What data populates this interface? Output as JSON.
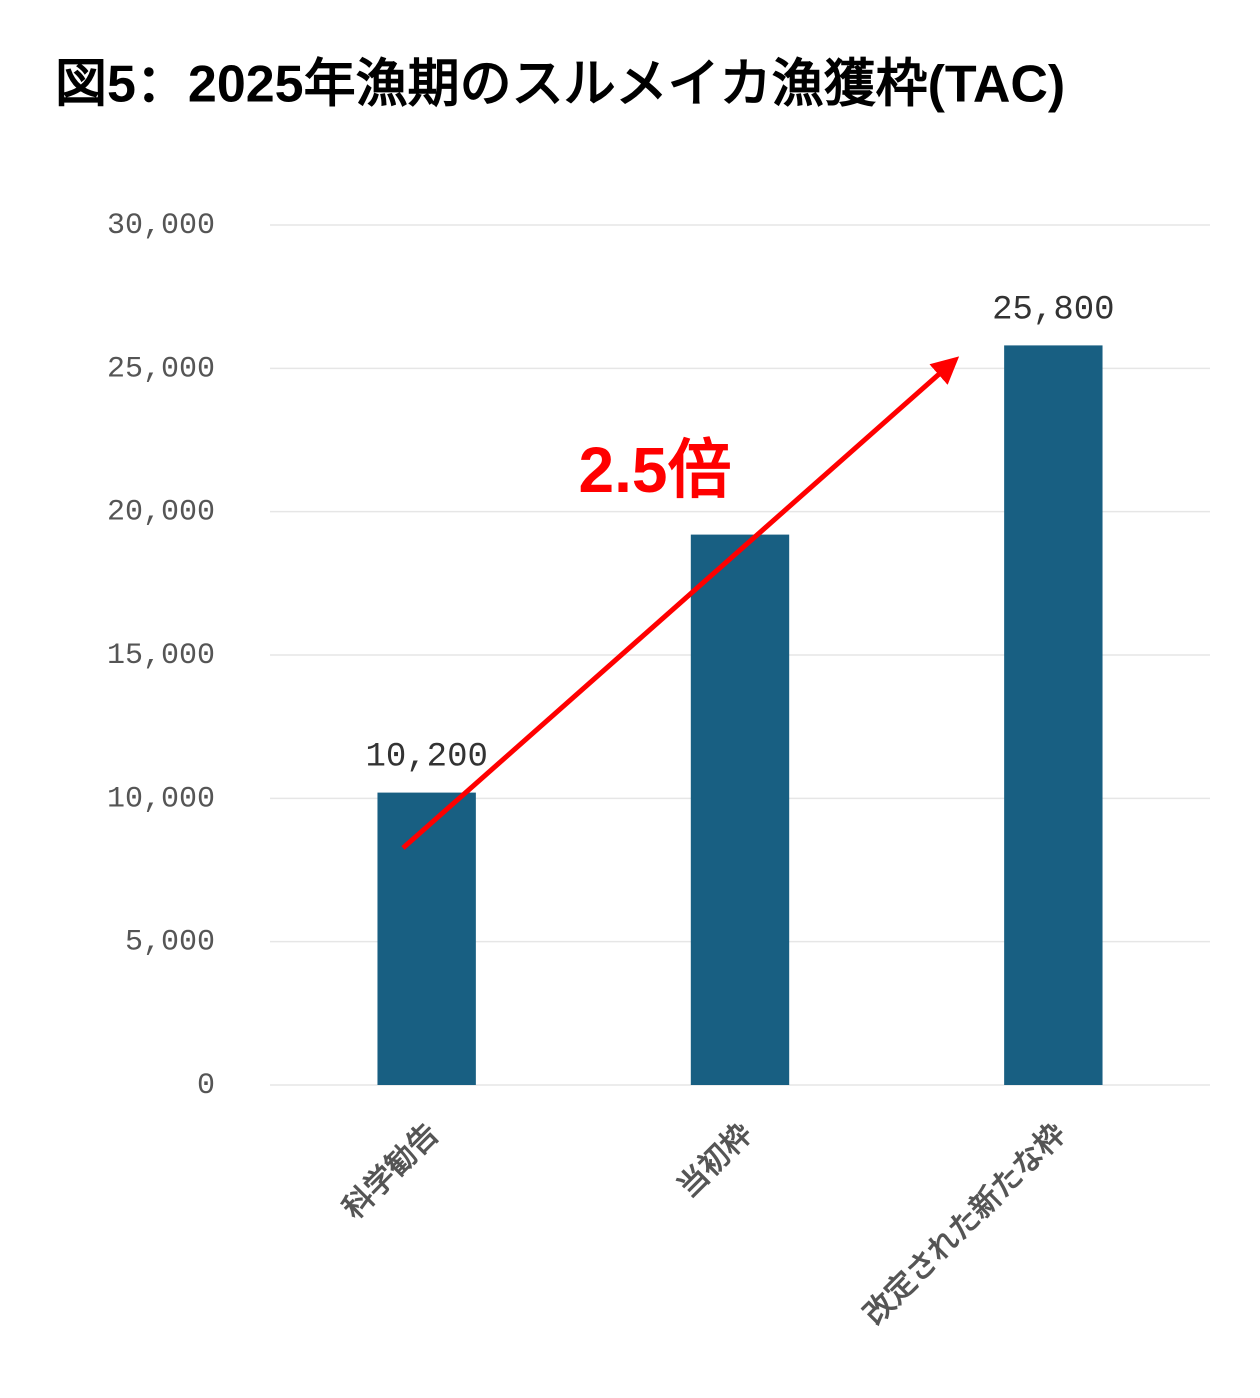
{
  "chart_data": {
    "type": "bar",
    "title": "図5：2025年漁期のスルメイカ漁獲枠(TAC)",
    "categories": [
      "科学勧告",
      "当初枠",
      "改定された新たな枠"
    ],
    "values": [
      10200,
      19200,
      25800
    ],
    "value_labels": [
      "10,200",
      null,
      "25,800"
    ],
    "color": "#185f82",
    "ylim": [
      0,
      30000
    ],
    "yticks": [
      0,
      {
        "value": 5000,
        "label": "5,000"
      },
      {
        "value": 10000,
        "label": "10,000"
      },
      {
        "value": 15000,
        "label": "15,000"
      },
      {
        "value": 20000,
        "label": "20,000"
      },
      {
        "value": 25000,
        "label": "25,000"
      },
      {
        "value": 30000,
        "label": "30,000"
      }
    ],
    "grid": true,
    "annotation": "2.5倍"
  }
}
